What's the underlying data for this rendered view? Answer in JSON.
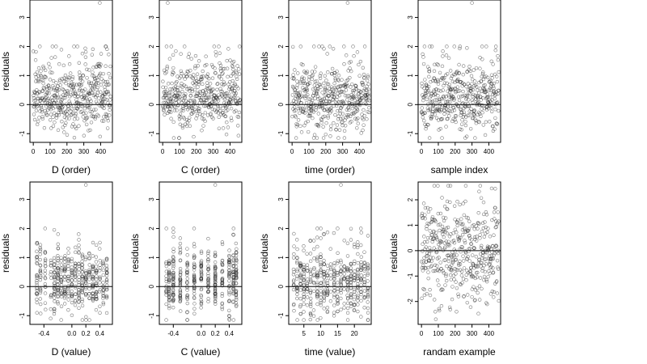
{
  "figure": {
    "colors": {
      "points": "#222222",
      "frame": "#000000",
      "background": "#ffffff"
    }
  },
  "chart_data": [
    {
      "type": "scatter",
      "xlabel": "D (order)",
      "ylabel": "residuals",
      "xlim": [
        -20,
        470
      ],
      "ylim": [
        -1.3,
        3.6
      ],
      "xticks": [
        0,
        100,
        200,
        300,
        400
      ],
      "yticks": [
        -1,
        0,
        1,
        2,
        3
      ],
      "hline": 0,
      "gen": "order_D",
      "n": 460
    },
    {
      "type": "scatter",
      "xlabel": "C (order)",
      "ylabel": "residuals",
      "xlim": [
        -20,
        470
      ],
      "ylim": [
        -1.3,
        3.6
      ],
      "xticks": [
        0,
        100,
        200,
        300,
        400
      ],
      "yticks": [
        -1,
        0,
        1,
        2,
        3
      ],
      "hline": 0,
      "gen": "order_C",
      "n": 460
    },
    {
      "type": "scatter",
      "xlabel": "time (order)",
      "ylabel": "residuals",
      "xlim": [
        -20,
        470
      ],
      "ylim": [
        -1.3,
        3.6
      ],
      "xticks": [
        0,
        100,
        200,
        300,
        400
      ],
      "yticks": [
        -1,
        0,
        1,
        2,
        3
      ],
      "hline": 0,
      "gen": "order_T",
      "n": 460
    },
    {
      "type": "scatter",
      "xlabel": "sample index",
      "ylabel": "residuals",
      "xlim": [
        -20,
        470
      ],
      "ylim": [
        -1.3,
        3.6
      ],
      "xticks": [
        0,
        100,
        200,
        300,
        400
      ],
      "yticks": [
        -1,
        0,
        1,
        2,
        3
      ],
      "hline": 0,
      "gen": "order_S",
      "n": 460
    },
    {
      "type": "scatter",
      "xlabel": "D (value)",
      "ylabel": "residuals",
      "xlim": [
        -0.6,
        0.58
      ],
      "ylim": [
        -1.3,
        3.6
      ],
      "xticks": [
        -0.4,
        0.0,
        0.2,
        0.4
      ],
      "xticklabels": [
        "-0.4",
        "0.0",
        "0.2",
        "0.4"
      ],
      "yticks": [
        -1,
        0,
        1,
        2,
        3
      ],
      "hline": 0,
      "gen": "levels",
      "levels": [
        -0.5,
        -0.45,
        -0.38,
        -0.3,
        -0.25,
        -0.2,
        -0.15,
        -0.1,
        -0.05,
        0.0,
        0.05,
        0.1,
        0.15,
        0.2,
        0.25,
        0.3,
        0.35,
        0.4,
        0.45,
        0.5
      ],
      "n": 460
    },
    {
      "type": "scatter",
      "xlabel": "C (value)",
      "ylabel": "residuals",
      "xlim": [
        -0.6,
        0.58
      ],
      "ylim": [
        -1.3,
        3.6
      ],
      "xticks": [
        -0.4,
        0.0,
        0.2,
        0.4
      ],
      "xticklabels": [
        "-0.4",
        "0.0",
        "0.2",
        "0.4"
      ],
      "yticks": [
        -1,
        0,
        1,
        2,
        3
      ],
      "hline": 0,
      "gen": "levels",
      "levels": [
        -0.5,
        -0.46,
        -0.4,
        -0.3,
        -0.2,
        -0.1,
        0.0,
        0.1,
        0.2,
        0.3,
        0.4,
        0.46,
        0.5
      ],
      "n": 460
    },
    {
      "type": "scatter",
      "xlabel": "time (value)",
      "ylabel": "residuals",
      "xlim": [
        0.5,
        25
      ],
      "ylim": [
        -1.3,
        3.6
      ],
      "xticks": [
        5,
        10,
        15,
        20
      ],
      "yticks": [
        -1,
        0,
        1,
        2,
        3
      ],
      "hline": 0,
      "gen": "levels",
      "levels": [
        2,
        3,
        4,
        5,
        6,
        7,
        8,
        9,
        10,
        11,
        12,
        13,
        14,
        15,
        16,
        17,
        18,
        19,
        20,
        21,
        22,
        23,
        24
      ],
      "n": 460
    },
    {
      "type": "scatter",
      "xlabel": "randam example",
      "ylabel": "residuals",
      "xlim": [
        -20,
        470
      ],
      "ylim": [
        -2.9,
        2.7
      ],
      "xticks": [
        0,
        100,
        200,
        300,
        400
      ],
      "yticks": [
        -2,
        -1,
        0,
        1,
        2
      ],
      "hline": 0,
      "gen": "random",
      "n": 460
    }
  ]
}
